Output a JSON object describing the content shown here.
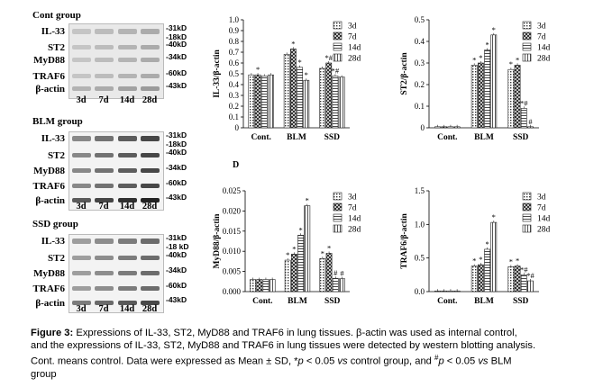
{
  "blots": [
    {
      "title": "Cont group",
      "rows": [
        {
          "label": "IL-33",
          "kd": [
            "-31kD",
            "-18kD"
          ]
        },
        {
          "label": "ST2",
          "kd": [
            "-40kD"
          ]
        },
        {
          "label": "MyD88",
          "kd": [
            "-34kD"
          ]
        },
        {
          "label": "TRAF6",
          "kd": [
            "-60kD"
          ]
        },
        {
          "label": "β-actin",
          "kd": [
            "-43kD"
          ]
        }
      ],
      "lanes": [
        "3d",
        "7d",
        "14d",
        "28d"
      ]
    },
    {
      "title": "BLM group",
      "rows": [
        {
          "label": "IL-33",
          "kd": [
            "-31kD",
            "-18kD"
          ]
        },
        {
          "label": "ST2",
          "kd": [
            "-40kD"
          ]
        },
        {
          "label": "MyD88",
          "kd": [
            "-34kD"
          ]
        },
        {
          "label": "TRAF6",
          "kd": [
            "-60kD"
          ]
        },
        {
          "label": "β-actin",
          "kd": [
            "-43kD"
          ]
        }
      ],
      "lanes": [
        "3d",
        "7d",
        "14d",
        "28d"
      ]
    },
    {
      "title": "SSD group",
      "rows": [
        {
          "label": "IL-33",
          "kd": [
            "-31kD",
            "-18 kD"
          ]
        },
        {
          "label": "ST2",
          "kd": [
            "-40kD"
          ]
        },
        {
          "label": "MyD88",
          "kd": [
            "-34kD"
          ]
        },
        {
          "label": "TRAF6",
          "kd": [
            "-60kD"
          ]
        },
        {
          "label": "β-actin",
          "kd": [
            "-43kD"
          ]
        }
      ],
      "lanes": [
        "3d",
        "7d",
        "14d",
        "28d"
      ]
    }
  ],
  "panel_label_d": "D",
  "chart_data": [
    {
      "type": "bar",
      "ylabel": "IL-33/β-actin",
      "ylim": [
        0,
        1.0
      ],
      "yticks": [
        "0",
        "0.1",
        "0.2",
        "0.3",
        "0.4",
        "0.5",
        "0.6",
        "0.7",
        "0.8",
        "0.9",
        "1.0"
      ],
      "categories": [
        "Cont.",
        "BLM",
        "SSD"
      ],
      "series": [
        {
          "name": "3d",
          "values": [
            0.49,
            0.68,
            0.55
          ]
        },
        {
          "name": "7d",
          "values": [
            0.49,
            0.73,
            0.6
          ]
        },
        {
          "name": "14d",
          "values": [
            0.48,
            0.56,
            0.48
          ]
        },
        {
          "name": "28d",
          "values": [
            0.49,
            0.44,
            0.47
          ]
        }
      ],
      "annotations": [
        [
          "",
          "",
          ""
        ],
        [
          "*",
          "*",
          "*#"
        ],
        [
          "",
          "*",
          "*#"
        ],
        [
          "",
          "*",
          ""
        ]
      ],
      "legend": "top-right"
    },
    {
      "type": "bar",
      "ylabel": "ST2/β-actin",
      "ylim": [
        0,
        0.5
      ],
      "yticks": [
        "0",
        "0.1",
        "0.2",
        "0.3",
        "0.4",
        "0.5"
      ],
      "categories": [
        "Cont.",
        "BLM",
        "SSD"
      ],
      "series": [
        {
          "name": "3d",
          "values": [
            0.005,
            0.29,
            0.27
          ]
        },
        {
          "name": "7d",
          "values": [
            0.005,
            0.3,
            0.29
          ]
        },
        {
          "name": "14d",
          "values": [
            0.005,
            0.36,
            0.09
          ]
        },
        {
          "name": "28d",
          "values": [
            0.005,
            0.43,
            0.005
          ]
        }
      ],
      "annotations": [
        [
          "",
          "*",
          "*"
        ],
        [
          "",
          "*",
          "*"
        ],
        [
          "",
          "*",
          "*#"
        ],
        [
          "",
          "*",
          "#"
        ]
      ],
      "legend": "top-right"
    },
    {
      "type": "bar",
      "ylabel": "MyD88/β-actin",
      "ylim": [
        0,
        0.025
      ],
      "yticks": [
        "0.000",
        "0.005",
        "0.010",
        "0.015",
        "0.020",
        "0.025"
      ],
      "categories": [
        "Cont.",
        "BLM",
        "SSD"
      ],
      "series": [
        {
          "name": "3d",
          "values": [
            0.003,
            0.0078,
            0.0082
          ]
        },
        {
          "name": "7d",
          "values": [
            0.003,
            0.0093,
            0.0095
          ]
        },
        {
          "name": "14d",
          "values": [
            0.003,
            0.014,
            0.0033
          ]
        },
        {
          "name": "28d",
          "values": [
            0.003,
            0.0213,
            0.0032
          ]
        }
      ],
      "annotations": [
        [
          "",
          "*",
          "*"
        ],
        [
          "",
          "*",
          "*"
        ],
        [
          "",
          "*",
          "#"
        ],
        [
          "",
          "*",
          "#"
        ]
      ],
      "legend": "top-right"
    },
    {
      "type": "bar",
      "ylabel": "TRAF6/β-actin",
      "ylim": [
        0,
        1.5
      ],
      "yticks": [
        "0.0",
        "0.5",
        "1.0",
        "1.5"
      ],
      "categories": [
        "Cont.",
        "BLM",
        "SSD"
      ],
      "series": [
        {
          "name": "3d",
          "values": [
            0.01,
            0.38,
            0.37
          ]
        },
        {
          "name": "7d",
          "values": [
            0.01,
            0.4,
            0.38
          ]
        },
        {
          "name": "14d",
          "values": [
            0.01,
            0.63,
            0.25
          ]
        },
        {
          "name": "28d",
          "values": [
            0.01,
            1.03,
            0.16
          ]
        }
      ],
      "annotations": [
        [
          "",
          "*",
          "*"
        ],
        [
          "",
          "*",
          "*"
        ],
        [
          "",
          "*",
          "*#"
        ],
        [
          "",
          "*",
          "*#"
        ]
      ],
      "legend": "top-right"
    }
  ],
  "caption": {
    "figure": "Figure 3:",
    "line1": " Expressions of IL-33, ST2, MyD88 and TRAF6 in lung tissues. β-actin was used as internal control,",
    "line2": "and the expressions of IL-33, ST2, MyD88 and TRAF6 in lung tissues were detected by western blotting analysis.",
    "line3a": "Cont. means control. Data were expressed as Mean ± SD, *",
    "p1": "p",
    "line3b": " < 0.05 ",
    "vs1": "vs",
    "line3c": " control group, and ",
    "hash": "#",
    "p2": "p",
    "line3d": " < 0.05 ",
    "vs2": "vs",
    "line3e": " BLM",
    "line4": "group"
  }
}
